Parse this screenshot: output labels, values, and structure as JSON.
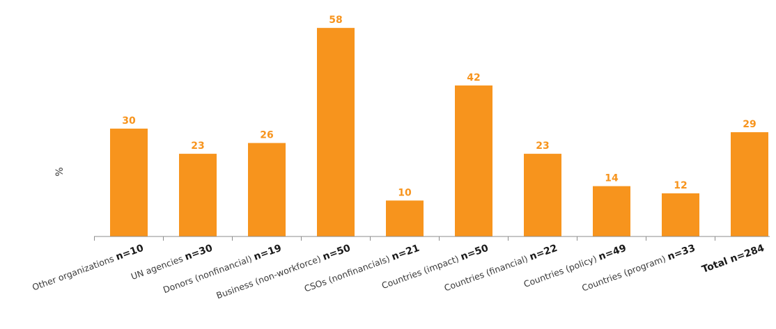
{
  "chart_data": {
    "type": "bar",
    "ylabel": "%",
    "ylim": [
      0,
      60
    ],
    "bar_color": "#f7941d",
    "axis_color": "#8c8c8c",
    "categories": [
      {
        "label": "Other organizations",
        "n": "n=10",
        "bold": false
      },
      {
        "label": "UN agencies",
        "n": "n=30",
        "bold": false
      },
      {
        "label": "Donors (nonfinancial)",
        "n": "n=19",
        "bold": false
      },
      {
        "label": "Business (non-workforce)",
        "n": "n=50",
        "bold": false
      },
      {
        "label": "CSOs (nonfinancials)",
        "n": "n=21",
        "bold": false
      },
      {
        "label": "Countries (impact)",
        "n": "n=50",
        "bold": false
      },
      {
        "label": "Countries (financial)",
        "n": "n=22",
        "bold": false
      },
      {
        "label": "Countries (policy)",
        "n": "n=49",
        "bold": false
      },
      {
        "label": "Countries (program)",
        "n": "n=33",
        "bold": false
      },
      {
        "label": "Total",
        "n": "n=284",
        "bold": true
      }
    ],
    "values": [
      30,
      23,
      26,
      58,
      10,
      42,
      23,
      14,
      12,
      29
    ]
  }
}
